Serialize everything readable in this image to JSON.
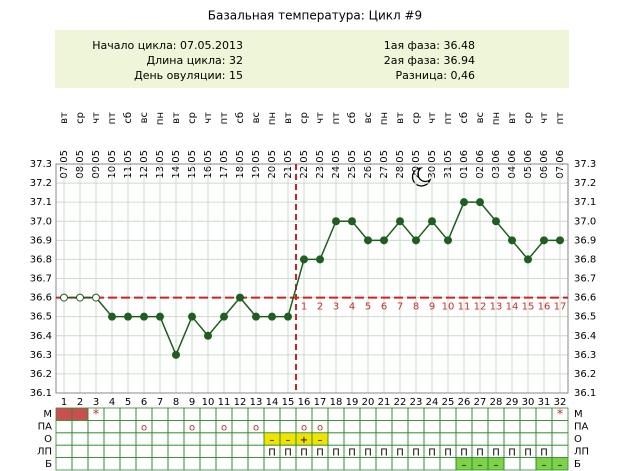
{
  "chart_data": {
    "type": "line",
    "title": "Базальная температура: Цикл #9",
    "info_left": [
      "Начало цикла: 07.05.2013",
      "Длина цикла: 32",
      "День овуляции: 15"
    ],
    "info_right": [
      "1ая фаза: 36.48",
      "2ая фаза: 36.94",
      "Разница: 0,46"
    ],
    "x": [
      1,
      2,
      3,
      4,
      5,
      6,
      7,
      8,
      9,
      10,
      11,
      12,
      13,
      14,
      15,
      16,
      17,
      18,
      19,
      20,
      21,
      22,
      23,
      24,
      25,
      26,
      27,
      28,
      29,
      30,
      31,
      32
    ],
    "weekdays": [
      "вт",
      "ср",
      "чт",
      "пт",
      "сб",
      "вс",
      "пн",
      "вт",
      "ср",
      "чт",
      "пт",
      "сб",
      "вс",
      "пн",
      "вт",
      "ср",
      "чт",
      "пт",
      "сб",
      "вс",
      "пн",
      "вт",
      "ср",
      "чт",
      "пт",
      "сб",
      "вс",
      "пн",
      "вт",
      "ср",
      "чт",
      "пт"
    ],
    "dates": [
      "07.05",
      "08.05",
      "09.05",
      "10.05",
      "11.05",
      "12.05",
      "13.05",
      "14.05",
      "15.05",
      "16.05",
      "17.05",
      "18.05",
      "19.05",
      "20.05",
      "21.05",
      "22.05",
      "23.05",
      "24.05",
      "25.05",
      "26.05",
      "27.05",
      "28.05",
      "29.05",
      "30.05",
      "31.05",
      "01.06",
      "02.06",
      "03.06",
      "04.06",
      "05.06",
      "06.06",
      "07.06"
    ],
    "values": [
      36.6,
      36.6,
      36.6,
      36.5,
      36.5,
      36.5,
      36.5,
      36.3,
      36.5,
      36.4,
      36.5,
      36.6,
      36.5,
      36.5,
      36.5,
      36.8,
      36.8,
      37.0,
      37.0,
      36.9,
      36.9,
      37.0,
      36.9,
      37.0,
      36.9,
      37.1,
      37.1,
      37.0,
      36.9,
      36.8,
      36.9,
      36.9
    ],
    "open_points": [
      1,
      2,
      3
    ],
    "color": "#1e5e1e",
    "coverline": 36.6,
    "ovulation_day": 15,
    "phase_days": [
      1,
      2,
      3,
      4,
      5,
      6,
      7,
      8,
      9,
      10,
      11,
      12,
      13,
      14,
      15,
      16,
      17
    ],
    "ylim": [
      36.1,
      37.3
    ],
    "yticks": [
      36.1,
      36.2,
      36.3,
      36.4,
      36.5,
      36.6,
      36.7,
      36.8,
      36.9,
      {
        "value": 37,
        "label": "37.0"
      },
      37.1,
      37.2,
      37.3
    ],
    "xlim": [
      0.5,
      32.5
    ],
    "grid": true,
    "rows": [
      {
        "name": "М",
        "fill_color": "#c9504f",
        "filled": [
          1,
          2
        ],
        "cells": [
          null,
          null,
          "*",
          null,
          null,
          null,
          null,
          null,
          null,
          null,
          null,
          null,
          null,
          null,
          null,
          null,
          null,
          null,
          null,
          null,
          null,
          null,
          null,
          null,
          null,
          null,
          null,
          null,
          null,
          null,
          null,
          "*"
        ]
      },
      {
        "name": "ПА",
        "fill_color": "#ffffff",
        "filled": [],
        "cells": [
          null,
          null,
          null,
          null,
          null,
          "o",
          null,
          null,
          "o",
          null,
          "o",
          null,
          "o",
          null,
          null,
          "o",
          "o",
          null,
          null,
          null,
          null,
          null,
          null,
          null,
          null,
          null,
          null,
          null,
          null,
          null,
          null,
          null
        ]
      },
      {
        "name": "О",
        "fill_color": "#f2e200",
        "filled": [
          14,
          15,
          16,
          17
        ],
        "cells": [
          null,
          null,
          null,
          null,
          null,
          null,
          null,
          null,
          null,
          null,
          null,
          null,
          null,
          "–",
          "–",
          "+",
          "–",
          null,
          null,
          null,
          null,
          null,
          null,
          null,
          null,
          null,
          null,
          null,
          null,
          null,
          null,
          null
        ]
      },
      {
        "name": "ЛП",
        "fill_color": "#ffffff",
        "filled": [],
        "cells": [
          null,
          null,
          null,
          null,
          null,
          null,
          null,
          null,
          null,
          null,
          null,
          null,
          null,
          "П",
          "П",
          "П",
          "П",
          "П",
          "П",
          "П",
          "П",
          "П",
          "П",
          "П",
          "П",
          "П",
          "П",
          "П",
          "П",
          "П",
          "П",
          null
        ]
      },
      {
        "name": "Б",
        "fill_color": "#7ed24a",
        "filled": [
          26,
          27,
          28,
          31,
          32
        ],
        "cells": [
          null,
          null,
          null,
          null,
          null,
          null,
          null,
          null,
          null,
          null,
          null,
          null,
          null,
          null,
          null,
          null,
          null,
          null,
          null,
          null,
          null,
          null,
          null,
          null,
          null,
          "–",
          "–",
          "–",
          null,
          null,
          "–",
          "–"
        ]
      }
    ]
  }
}
